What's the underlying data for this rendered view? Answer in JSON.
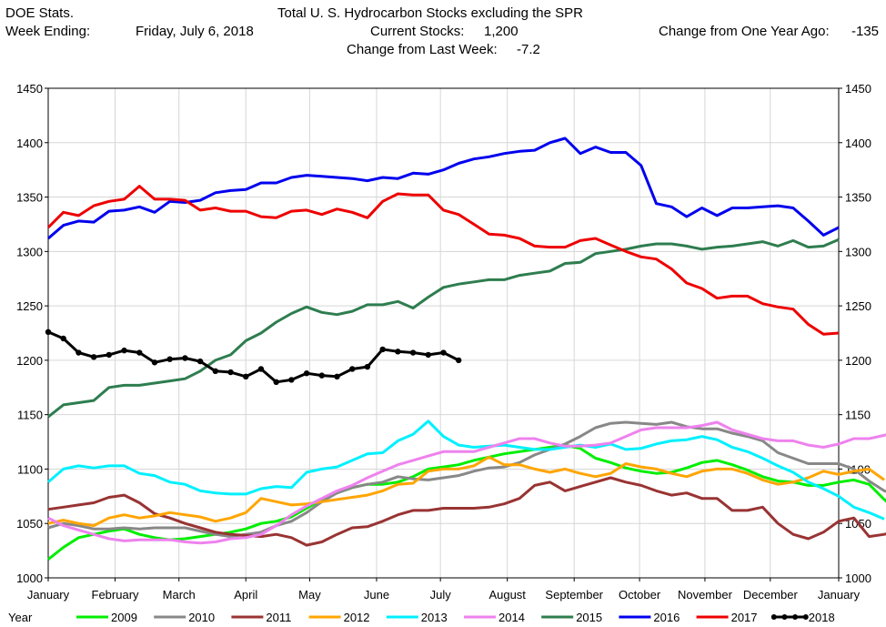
{
  "header": {
    "left_line1": "DOE Stats.",
    "left_line2_label": "Week Ending:",
    "week_ending": "Friday, July 6, 2018",
    "title": "Total U. S. Hydrocarbon Stocks excluding the SPR",
    "current_label": "Current Stocks:",
    "current_value": "1,200",
    "weekly_change_label": "Change from Last Week:",
    "weekly_change_value": "-7.2",
    "yearly_change_label": "Change from One Year Ago:",
    "yearly_change_value": "-135"
  },
  "chart_data": {
    "type": "line",
    "ylim": [
      1000,
      1450
    ],
    "y_ticks": [
      1000,
      1050,
      1100,
      1150,
      1200,
      1250,
      1300,
      1350,
      1400,
      1450
    ],
    "y_tick_labels": [
      "1000",
      "1050",
      "1100",
      "1150",
      "1200",
      "1250",
      "1300",
      "1350",
      "1400",
      "1450"
    ],
    "x_range_weeks": [
      1,
      53
    ],
    "x_ticks": [
      {
        "label": "January",
        "week": 1
      },
      {
        "label": "February",
        "week": 5.4
      },
      {
        "label": "March",
        "week": 9.6
      },
      {
        "label": "April",
        "week": 14
      },
      {
        "label": "May",
        "week": 18.2
      },
      {
        "label": "June",
        "week": 22.6
      },
      {
        "label": "July",
        "week": 26.8
      },
      {
        "label": "August",
        "week": 31.2
      },
      {
        "label": "September",
        "week": 35.6
      },
      {
        "label": "October",
        "week": 39.9
      },
      {
        "label": "November",
        "week": 44.2
      },
      {
        "label": "December",
        "week": 48.5
      },
      {
        "label": "January",
        "week": 53
      }
    ],
    "legend_title": "Year",
    "series": [
      {
        "name": "2009",
        "color": "#00ee00",
        "markers": false,
        "values": [
          1017,
          1028,
          1037,
          1040,
          1043,
          1045,
          1040,
          1037,
          1035,
          1036,
          1038,
          1040,
          1042,
          1045,
          1050,
          1052,
          1056,
          1064,
          1072,
          1078,
          1083,
          1086,
          1086,
          1088,
          1093,
          1100,
          1102,
          1104,
          1108,
          1111,
          1114,
          1116,
          1118,
          1120,
          1122,
          1119,
          1110,
          1106,
          1101,
          1098,
          1096,
          1097,
          1101,
          1106,
          1108,
          1104,
          1099,
          1093,
          1089,
          1088,
          1085,
          1085,
          1088,
          1090,
          1086,
          1072,
          1060,
          1053,
          1050
        ]
      },
      {
        "name": "2010",
        "color": "#888888",
        "markers": false,
        "values": [
          1046,
          1050,
          1048,
          1045,
          1045,
          1046,
          1045,
          1046,
          1046,
          1046,
          1043,
          1040,
          1038,
          1040,
          1042,
          1048,
          1052,
          1060,
          1070,
          1078,
          1083,
          1086,
          1088,
          1093,
          1091,
          1090,
          1092,
          1094,
          1098,
          1101,
          1102,
          1106,
          1113,
          1118,
          1123,
          1130,
          1138,
          1142,
          1143,
          1142,
          1141,
          1143,
          1139,
          1137,
          1137,
          1133,
          1130,
          1126,
          1115,
          1110,
          1105,
          1105,
          1105,
          1100,
          1089,
          1080,
          1076,
          1068,
          1063
        ]
      },
      {
        "name": "2011",
        "color": "#993333",
        "markers": false,
        "values": [
          1063,
          1065,
          1067,
          1069,
          1074,
          1076,
          1069,
          1059,
          1055,
          1050,
          1046,
          1042,
          1040,
          1039,
          1038,
          1040,
          1037,
          1030,
          1033,
          1040,
          1046,
          1047,
          1052,
          1058,
          1062,
          1062,
          1064,
          1064,
          1064,
          1065,
          1068,
          1073,
          1085,
          1088,
          1080,
          1084,
          1088,
          1092,
          1088,
          1085,
          1080,
          1076,
          1078,
          1073,
          1073,
          1062,
          1062,
          1065,
          1050,
          1040,
          1036,
          1042,
          1052,
          1055,
          1038,
          1040,
          1044
        ]
      },
      {
        "name": "2012",
        "color": "#ffa500",
        "markers": false,
        "values": [
          1050,
          1053,
          1050,
          1048,
          1055,
          1058,
          1055,
          1057,
          1060,
          1058,
          1056,
          1052,
          1055,
          1060,
          1073,
          1070,
          1067,
          1068,
          1070,
          1072,
          1074,
          1076,
          1080,
          1086,
          1087,
          1098,
          1100,
          1100,
          1103,
          1111,
          1104,
          1104,
          1100,
          1097,
          1100,
          1096,
          1093,
          1096,
          1105,
          1102,
          1100,
          1096,
          1093,
          1098,
          1100,
          1100,
          1096,
          1090,
          1086,
          1088,
          1092,
          1098,
          1095,
          1098,
          1100,
          1090
        ]
      },
      {
        "name": "2013",
        "color": "#00f0ff",
        "markers": false,
        "values": [
          1088,
          1100,
          1103,
          1101,
          1103,
          1103,
          1096,
          1094,
          1088,
          1086,
          1080,
          1078,
          1077,
          1077,
          1082,
          1084,
          1083,
          1097,
          1100,
          1102,
          1108,
          1114,
          1115,
          1126,
          1132,
          1144,
          1130,
          1122,
          1120,
          1121,
          1122,
          1120,
          1118,
          1118,
          1120,
          1122,
          1120,
          1123,
          1118,
          1119,
          1123,
          1126,
          1127,
          1130,
          1127,
          1120,
          1116,
          1110,
          1103,
          1097,
          1088,
          1082,
          1075,
          1065,
          1060,
          1054
        ]
      },
      {
        "name": "2014",
        "color": "#ee82ee",
        "markers": false,
        "values": [
          1055,
          1048,
          1044,
          1040,
          1036,
          1034,
          1035,
          1035,
          1035,
          1033,
          1032,
          1033,
          1036,
          1037,
          1040,
          1048,
          1058,
          1066,
          1073,
          1080,
          1085,
          1092,
          1098,
          1104,
          1108,
          1112,
          1116,
          1116,
          1116,
          1120,
          1124,
          1128,
          1128,
          1124,
          1121,
          1121,
          1122,
          1124,
          1130,
          1136,
          1138,
          1138,
          1138,
          1140,
          1143,
          1136,
          1132,
          1128,
          1126,
          1126,
          1122,
          1120,
          1123,
          1128,
          1128,
          1131,
          1136,
          1138
        ]
      },
      {
        "name": "2015",
        "color": "#2e7d4f",
        "markers": false,
        "values": [
          1148,
          1159,
          1161,
          1163,
          1175,
          1177,
          1177,
          1179,
          1181,
          1183,
          1190,
          1200,
          1205,
          1218,
          1225,
          1235,
          1243,
          1249,
          1244,
          1242,
          1245,
          1251,
          1251,
          1254,
          1248,
          1258,
          1267,
          1270,
          1272,
          1274,
          1274,
          1278,
          1280,
          1282,
          1289,
          1290,
          1298,
          1300,
          1302,
          1305,
          1307,
          1307,
          1305,
          1302,
          1304,
          1305,
          1307,
          1309,
          1305,
          1310,
          1304,
          1305,
          1311
        ]
      },
      {
        "name": "2016",
        "color": "#0000ee",
        "markers": false,
        "values": [
          1312,
          1324,
          1328,
          1327,
          1337,
          1338,
          1341,
          1336,
          1346,
          1345,
          1347,
          1354,
          1356,
          1357,
          1363,
          1363,
          1368,
          1370,
          1369,
          1368,
          1367,
          1365,
          1368,
          1367,
          1372,
          1371,
          1375,
          1381,
          1385,
          1387,
          1390,
          1392,
          1393,
          1400,
          1404,
          1390,
          1396,
          1391,
          1391,
          1379,
          1344,
          1341,
          1332,
          1340,
          1333,
          1340,
          1340,
          1341,
          1342,
          1340,
          1328,
          1315,
          1322
        ]
      },
      {
        "name": "2017",
        "color": "#ee0000",
        "markers": false,
        "values": [
          1322,
          1336,
          1333,
          1342,
          1346,
          1348,
          1360,
          1348,
          1348,
          1347,
          1338,
          1340,
          1337,
          1337,
          1332,
          1331,
          1337,
          1338,
          1334,
          1339,
          1336,
          1331,
          1346,
          1353,
          1352,
          1352,
          1338,
          1334,
          1325,
          1316,
          1315,
          1312,
          1305,
          1304,
          1304,
          1310,
          1312,
          1306,
          1300,
          1295,
          1293,
          1284,
          1271,
          1266,
          1257,
          1259,
          1259,
          1252,
          1249,
          1247,
          1233,
          1224,
          1225
        ]
      },
      {
        "name": "2018",
        "color": "#000000",
        "markers": true,
        "values": [
          1226,
          1220,
          1207,
          1203,
          1205,
          1209,
          1207,
          1198,
          1201,
          1202,
          1199,
          1190,
          1189,
          1185,
          1192,
          1180,
          1182,
          1188,
          1186,
          1185,
          1192,
          1194,
          1210,
          1208,
          1207,
          1205,
          1207,
          1200
        ]
      }
    ]
  }
}
